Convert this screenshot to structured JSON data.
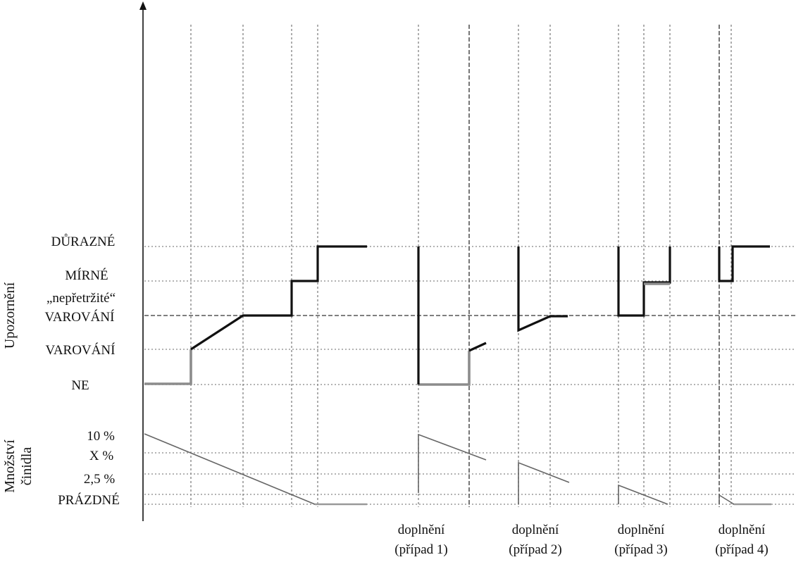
{
  "axes": {
    "warning_title": "Upozornění",
    "agent_title_line1": "Množství",
    "agent_title_line2": "činidla"
  },
  "warning_levels": [
    {
      "key": "ne",
      "label": "NE"
    },
    {
      "key": "varovani",
      "label": "VAROVÁNÍ"
    },
    {
      "key": "neprerusene",
      "label_line1": "„nepřetržité“",
      "label_line2": "VAROVÁNÍ"
    },
    {
      "key": "mirne",
      "label": "MÍRNÉ"
    },
    {
      "key": "durazne",
      "label": "DŮRAZNÉ"
    }
  ],
  "agent_levels": [
    {
      "key": "p10",
      "label": "10 %"
    },
    {
      "key": "px",
      "label": "X %"
    },
    {
      "key": "p25",
      "label": "2,5 %"
    },
    {
      "key": "empty",
      "label": "PRÁZDNÉ"
    }
  ],
  "events": [
    {
      "line1": "doplnění",
      "line2": "(případ 1)"
    },
    {
      "line1": "doplnění",
      "line2": "(případ 2)"
    },
    {
      "line1": "doplnění",
      "line2": "(případ 3)"
    },
    {
      "line1": "doplnění",
      "line2": "(případ 4)"
    }
  ],
  "colors": {
    "warning_line": "#111111",
    "agent_line": "#666666",
    "grid": "#9a9a9a"
  }
}
